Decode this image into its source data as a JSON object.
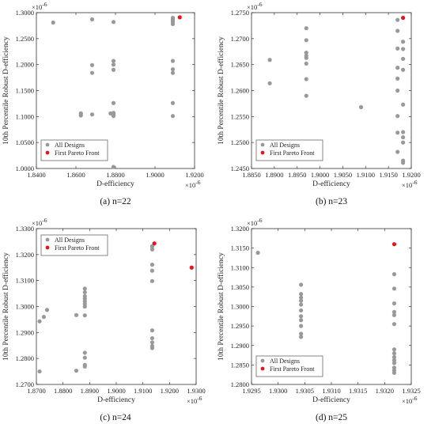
{
  "colors": {
    "all": "#999999",
    "pareto": "#e8141c",
    "axis": "#333333"
  },
  "chart_data": [
    {
      "type": "scatter",
      "caption": "(a) n=22",
      "xlabel": "D-efficiency",
      "ylabel": "10th Percentile Robust D-efficiency",
      "x_multiplier": "×10",
      "x_exponent": "-6",
      "y_multiplier": "×10",
      "y_exponent": "-6",
      "xlim": [
        1.84,
        1.92
      ],
      "ylim": [
        1.0,
        1.3
      ],
      "xticks": [
        "1.8400",
        "1.8600",
        "1.8800",
        "1.9000",
        "1.9200"
      ],
      "xtick_values": [
        1.84,
        1.86,
        1.88,
        1.9,
        1.92
      ],
      "yticks": [
        "1.0000",
        "1.0500",
        "1.1000",
        "1.1500",
        "1.2000",
        "1.2500",
        "1.3000"
      ],
      "ytick_values": [
        1.0,
        1.05,
        1.1,
        1.15,
        1.2,
        1.25,
        1.3
      ],
      "legend": {
        "position": "bottom-left",
        "entries": [
          "All Designs",
          "First Pareto Front"
        ]
      },
      "series": [
        {
          "name": "All Designs",
          "points": [
            [
              1.8485,
              1.281
            ],
            [
              1.8625,
              1.102
            ],
            [
              1.8625,
              1.106
            ],
            [
              1.8682,
              1.287
            ],
            [
              1.8682,
              1.199
            ],
            [
              1.8682,
              1.184
            ],
            [
              1.8682,
              1.104
            ],
            [
              1.879,
              1.282
            ],
            [
              1.879,
              1.207
            ],
            [
              1.879,
              1.2
            ],
            [
              1.879,
              1.19
            ],
            [
              1.879,
              1.126
            ],
            [
              1.879,
              1.107
            ],
            [
              1.879,
              1.104
            ],
            [
              1.879,
              1.101
            ],
            [
              1.879,
              1.003
            ],
            [
              1.8775,
              1.106
            ],
            [
              1.909,
              1.29
            ],
            [
              1.909,
              1.287
            ],
            [
              1.909,
              1.285
            ],
            [
              1.909,
              1.282
            ],
            [
              1.909,
              1.278
            ],
            [
              1.909,
              1.207
            ],
            [
              1.909,
              1.191
            ],
            [
              1.909,
              1.184
            ],
            [
              1.909,
              1.126
            ],
            [
              1.909,
              1.101
            ]
          ]
        },
        {
          "name": "First Pareto Front",
          "points": [
            [
              1.9125,
              1.291
            ]
          ]
        }
      ]
    },
    {
      "type": "scatter",
      "caption": "(b) n=23",
      "xlabel": "D-efficiency",
      "ylabel": "10th Percentile Robust D-efficiency",
      "x_multiplier": "×10",
      "x_exponent": "-6",
      "y_multiplier": "×10",
      "y_exponent": "-6",
      "xlim": [
        1.885,
        1.92
      ],
      "ylim": [
        1.245,
        1.275
      ],
      "xticks": [
        "1.8850",
        "1.8900",
        "1.8950",
        "1.9000",
        "1.9050",
        "1.9100",
        "1.9150",
        "1.9200"
      ],
      "xtick_values": [
        1.885,
        1.89,
        1.895,
        1.9,
        1.905,
        1.91,
        1.915,
        1.92
      ],
      "yticks": [
        "1.2450",
        "1.2500",
        "1.2550",
        "1.2600",
        "1.2650",
        "1.2700",
        "1.2750"
      ],
      "ytick_values": [
        1.245,
        1.25,
        1.255,
        1.26,
        1.265,
        1.27,
        1.275
      ],
      "legend": {
        "position": "bottom-left",
        "entries": [
          "All Designs",
          "First Pareto Front"
        ]
      },
      "series": [
        {
          "name": "All Designs",
          "points": [
            [
              1.889,
              1.2659
            ],
            [
              1.889,
              1.2614
            ],
            [
              1.897,
              1.272
            ],
            [
              1.897,
              1.2697
            ],
            [
              1.897,
              1.2673
            ],
            [
              1.897,
              1.2667
            ],
            [
              1.897,
              1.2663
            ],
            [
              1.897,
              1.2652
            ],
            [
              1.897,
              1.2622
            ],
            [
              1.897,
              1.259
            ],
            [
              1.909,
              1.2568
            ],
            [
              1.917,
              1.2736
            ],
            [
              1.917,
              1.2715
            ],
            [
              1.917,
              1.2681
            ],
            [
              1.917,
              1.2644
            ],
            [
              1.917,
              1.2623
            ],
            [
              1.917,
              1.26
            ],
            [
              1.917,
              1.2551
            ],
            [
              1.917,
              1.2519
            ],
            [
              1.917,
              1.2482
            ],
            [
              1.9182,
              1.2694
            ],
            [
              1.9182,
              1.268
            ],
            [
              1.9182,
              1.2661
            ],
            [
              1.9182,
              1.264
            ],
            [
              1.9182,
              1.2573
            ],
            [
              1.9182,
              1.252
            ],
            [
              1.9182,
              1.251
            ],
            [
              1.9182,
              1.25
            ],
            [
              1.9182,
              1.2465
            ],
            [
              1.9182,
              1.2461
            ]
          ]
        },
        {
          "name": "First Pareto Front",
          "points": [
            [
              1.9182,
              1.274
            ]
          ]
        }
      ]
    },
    {
      "type": "scatter",
      "caption": "(c) n=24",
      "xlabel": "D-efficiency",
      "ylabel": "10th Percentile Robust D-efficiency",
      "x_multiplier": "×10",
      "x_exponent": "-6",
      "y_multiplier": "×10",
      "y_exponent": "-6",
      "xlim": [
        1.87,
        1.93
      ],
      "ylim": [
        1.27,
        1.33
      ],
      "xticks": [
        "1.8700",
        "1.8800",
        "1.8900",
        "1.9000",
        "1.9100",
        "1.9200",
        "1.9300"
      ],
      "xtick_values": [
        1.87,
        1.88,
        1.89,
        1.9,
        1.91,
        1.92,
        1.93
      ],
      "yticks": [
        "1.2700",
        "1.2800",
        "1.2900",
        "1.3000",
        "1.3100",
        "1.3200",
        "1.3300"
      ],
      "ytick_values": [
        1.27,
        1.28,
        1.29,
        1.3,
        1.31,
        1.32,
        1.33
      ],
      "legend": {
        "position": "top-left",
        "entries": [
          "All Designs",
          "First Pareto Front"
        ]
      },
      "series": [
        {
          "name": "All Designs",
          "points": [
            [
              1.8712,
              1.2943
            ],
            [
              1.8712,
              1.275
            ],
            [
              1.8728,
              1.296
            ],
            [
              1.874,
              1.2987
            ],
            [
              1.885,
              1.2967
            ],
            [
              1.885,
              1.2753
            ],
            [
              1.8882,
              1.3069
            ],
            [
              1.8882,
              1.3055
            ],
            [
              1.8882,
              1.304
            ],
            [
              1.8882,
              1.303
            ],
            [
              1.8882,
              1.302
            ],
            [
              1.8882,
              1.301
            ],
            [
              1.8882,
              1.3
            ],
            [
              1.8882,
              1.2966
            ],
            [
              1.8882,
              1.2822
            ],
            [
              1.8882,
              1.2803
            ],
            [
              1.8882,
              1.2775
            ],
            [
              1.8882,
              1.2769
            ],
            [
              1.9135,
              1.3232
            ],
            [
              1.9135,
              1.322
            ],
            [
              1.9135,
              1.3161
            ],
            [
              1.9135,
              1.3138
            ],
            [
              1.9135,
              1.3098
            ],
            [
              1.9135,
              1.2908
            ],
            [
              1.9135,
              1.2878
            ],
            [
              1.9135,
              1.2862
            ],
            [
              1.9135,
              1.2848
            ],
            [
              1.9135,
              1.284
            ]
          ]
        },
        {
          "name": "First Pareto Front",
          "points": [
            [
              1.9143,
              1.3243
            ],
            [
              1.9283,
              1.315
            ]
          ]
        }
      ]
    },
    {
      "type": "scatter",
      "caption": "(d) n=25",
      "xlabel": "D-efficiency",
      "ylabel": "10th Percentile Robust D-efficiency",
      "x_multiplier": "×10",
      "x_exponent": "-6",
      "y_multiplier": "×10",
      "y_exponent": "-6",
      "xlim": [
        1.9295,
        1.9325
      ],
      "ylim": [
        1.28,
        1.32
      ],
      "xticks": [
        "1.9295",
        "1.9300",
        "1.9305",
        "1.9310",
        "1.9315",
        "1.9320",
        "1.9325"
      ],
      "xtick_values": [
        1.9295,
        1.93,
        1.9305,
        1.931,
        1.9315,
        1.932,
        1.9325
      ],
      "yticks": [
        "1.2800",
        "1.2850",
        "1.2900",
        "1.2950",
        "1.3000",
        "1.3050",
        "1.3100",
        "1.3150",
        "1.3200"
      ],
      "ytick_values": [
        1.28,
        1.285,
        1.29,
        1.295,
        1.3,
        1.305,
        1.31,
        1.315,
        1.32
      ],
      "legend": {
        "position": "bottom-left",
        "entries": [
          "All Designs",
          "First Pareto Front"
        ]
      },
      "series": [
        {
          "name": "All Designs",
          "points": [
            [
              1.92962,
              1.3138
            ],
            [
              1.93043,
              1.3056
            ],
            [
              1.93043,
              1.3032
            ],
            [
              1.93043,
              1.3023
            ],
            [
              1.93043,
              1.3015
            ],
            [
              1.93043,
              1.3005
            ],
            [
              1.93043,
              1.299
            ],
            [
              1.93043,
              1.2975
            ],
            [
              1.93043,
              1.2965
            ],
            [
              1.93043,
              1.295
            ],
            [
              1.93043,
              1.293
            ],
            [
              1.93043,
              1.2922
            ],
            [
              1.93218,
              1.3083
            ],
            [
              1.93218,
              1.3046
            ],
            [
              1.93218,
              1.3008
            ],
            [
              1.93218,
              1.2986
            ],
            [
              1.93218,
              1.2978
            ],
            [
              1.93218,
              1.2955
            ],
            [
              1.93218,
              1.289
            ],
            [
              1.93218,
              1.288
            ],
            [
              1.93218,
              1.287
            ],
            [
              1.93218,
              1.2862
            ],
            [
              1.93218,
              1.2855
            ],
            [
              1.93218,
              1.2843
            ],
            [
              1.93218,
              1.2836
            ],
            [
              1.93218,
              1.283
            ]
          ]
        },
        {
          "name": "First Pareto Front",
          "points": [
            [
              1.93218,
              1.316
            ]
          ]
        }
      ]
    }
  ]
}
